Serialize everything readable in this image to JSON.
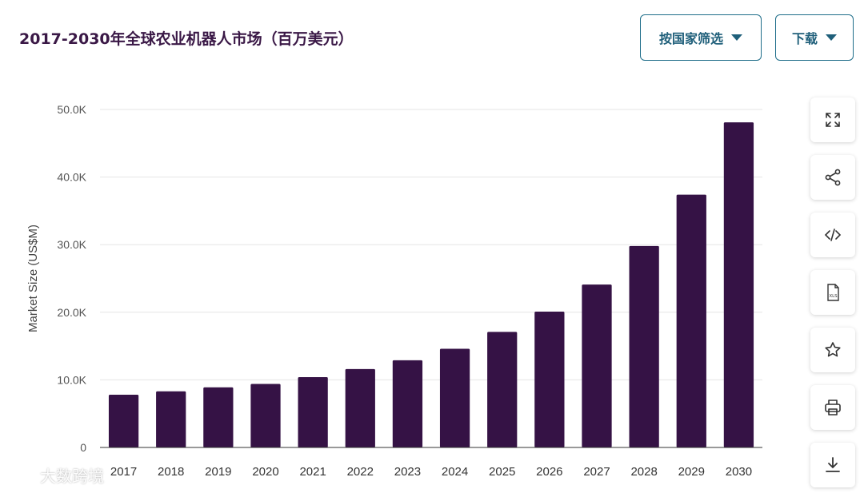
{
  "header": {
    "title": "2017-2030年全球农业机器人市场（百万美元）",
    "filter_label": "按国家筛选",
    "download_label": "下载"
  },
  "toolbar": {
    "icons": [
      "expand-icon",
      "share-icon",
      "embed-code-icon",
      "xls-file-icon",
      "star-icon",
      "print-icon",
      "download-icon"
    ],
    "xls_label": "XLS"
  },
  "watermark": {
    "text": "大数跨境"
  },
  "colors": {
    "bar": "#351245",
    "accent": "#1f5f7a",
    "title": "#3a1846"
  },
  "chart_data": {
    "type": "bar",
    "title": "2017-2030年全球农业机器人市场（百万美元）",
    "xlabel": "",
    "ylabel": "Market Size (US$M)",
    "categories": [
      "2017",
      "2018",
      "2019",
      "2020",
      "2021",
      "2022",
      "2023",
      "2024",
      "2025",
      "2026",
      "2027",
      "2028",
      "2029",
      "2030"
    ],
    "values": [
      7800,
      8300,
      8900,
      9400,
      10400,
      11600,
      12900,
      14600,
      17100,
      20100,
      24100,
      29800,
      37400,
      48100
    ],
    "ylim": [
      0,
      50000
    ],
    "yticks": [
      0,
      10000,
      20000,
      30000,
      40000,
      50000
    ],
    "ytick_labels": [
      "0",
      "10.0K",
      "20.0K",
      "30.0K",
      "40.0K",
      "50.0K"
    ],
    "grid": true,
    "legend": "none"
  }
}
